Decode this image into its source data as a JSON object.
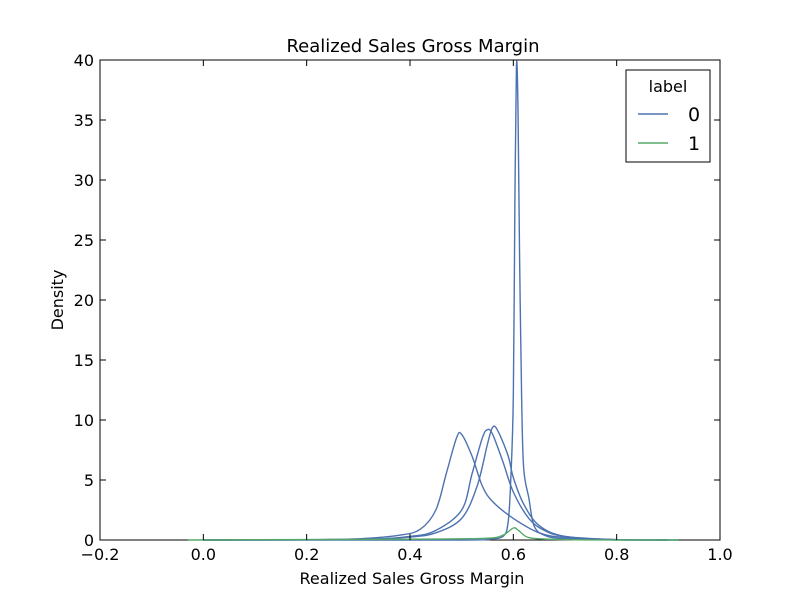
{
  "chart_data": {
    "type": "line",
    "title": "Realized Sales Gross Margin",
    "xlabel": "Realized Sales Gross Margin",
    "ylabel": "Density",
    "xlim": [
      -0.2,
      1.0
    ],
    "ylim": [
      0,
      40
    ],
    "x_ticks": [
      "−0.2",
      "0.0",
      "0.2",
      "0.4",
      "0.6",
      "0.8",
      "1.0"
    ],
    "y_ticks": [
      "0",
      "5",
      "10",
      "15",
      "20",
      "25",
      "30",
      "35",
      "40"
    ],
    "grid": false,
    "legend": {
      "title": "label",
      "placement": "top-right",
      "entries": [
        "0",
        "1"
      ]
    },
    "colors": {
      "0": "#4c72b0",
      "1": "#55a868"
    },
    "series": [
      {
        "name": "0",
        "curves": [
          [
            [
              0.0,
              0.0
            ],
            [
              0.2,
              0.02
            ],
            [
              0.3,
              0.1
            ],
            [
              0.38,
              0.4
            ],
            [
              0.42,
              0.9
            ],
            [
              0.45,
              2.5
            ],
            [
              0.47,
              5.5
            ],
            [
              0.49,
              8.5
            ],
            [
              0.5,
              8.8
            ],
            [
              0.52,
              7.0
            ],
            [
              0.54,
              4.5
            ],
            [
              0.56,
              3.2
            ],
            [
              0.6,
              1.8
            ],
            [
              0.65,
              0.6
            ],
            [
              0.7,
              0.2
            ],
            [
              0.8,
              0.02
            ],
            [
              0.92,
              0.0
            ]
          ],
          [
            [
              0.0,
              0.0
            ],
            [
              0.3,
              0.05
            ],
            [
              0.4,
              0.3
            ],
            [
              0.45,
              0.8
            ],
            [
              0.5,
              2.5
            ],
            [
              0.52,
              5.5
            ],
            [
              0.54,
              8.5
            ],
            [
              0.55,
              9.2
            ],
            [
              0.56,
              8.8
            ],
            [
              0.58,
              6.5
            ],
            [
              0.6,
              4.0
            ],
            [
              0.63,
              1.8
            ],
            [
              0.66,
              0.8
            ],
            [
              0.7,
              0.3
            ],
            [
              0.8,
              0.03
            ],
            [
              0.9,
              0.0
            ]
          ],
          [
            [
              0.0,
              0.0
            ],
            [
              0.3,
              0.05
            ],
            [
              0.4,
              0.25
            ],
            [
              0.45,
              0.6
            ],
            [
              0.5,
              1.8
            ],
            [
              0.53,
              4.5
            ],
            [
              0.55,
              8.0
            ],
            [
              0.56,
              9.4
            ],
            [
              0.57,
              9.1
            ],
            [
              0.59,
              7.0
            ],
            [
              0.6,
              5.2
            ],
            [
              0.62,
              3.0
            ],
            [
              0.65,
              1.2
            ],
            [
              0.7,
              0.3
            ],
            [
              0.8,
              0.03
            ],
            [
              0.9,
              0.0
            ]
          ],
          [
            [
              0.0,
              0.0
            ],
            [
              0.5,
              0.0
            ],
            [
              0.55,
              0.1
            ],
            [
              0.58,
              0.3
            ],
            [
              0.59,
              1.5
            ],
            [
              0.595,
              5.0
            ],
            [
              0.6,
              12.0
            ],
            [
              0.603,
              28.0
            ],
            [
              0.606,
              39.5
            ],
            [
              0.609,
              36.0
            ],
            [
              0.612,
              24.0
            ],
            [
              0.616,
              12.0
            ],
            [
              0.62,
              6.0
            ],
            [
              0.63,
              3.5
            ],
            [
              0.64,
              1.2
            ],
            [
              0.66,
              0.4
            ],
            [
              0.7,
              0.1
            ],
            [
              0.8,
              0.0
            ]
          ]
        ]
      },
      {
        "name": "1",
        "curves": [
          [
            [
              -0.03,
              0.0
            ],
            [
              0.1,
              0.02
            ],
            [
              0.3,
              0.05
            ],
            [
              0.45,
              0.08
            ],
            [
              0.55,
              0.15
            ],
            [
              0.58,
              0.4
            ],
            [
              0.6,
              1.0
            ],
            [
              0.61,
              0.8
            ],
            [
              0.63,
              0.2
            ],
            [
              0.68,
              0.05
            ],
            [
              0.8,
              0.0
            ],
            [
              0.92,
              0.0
            ]
          ]
        ]
      }
    ]
  }
}
